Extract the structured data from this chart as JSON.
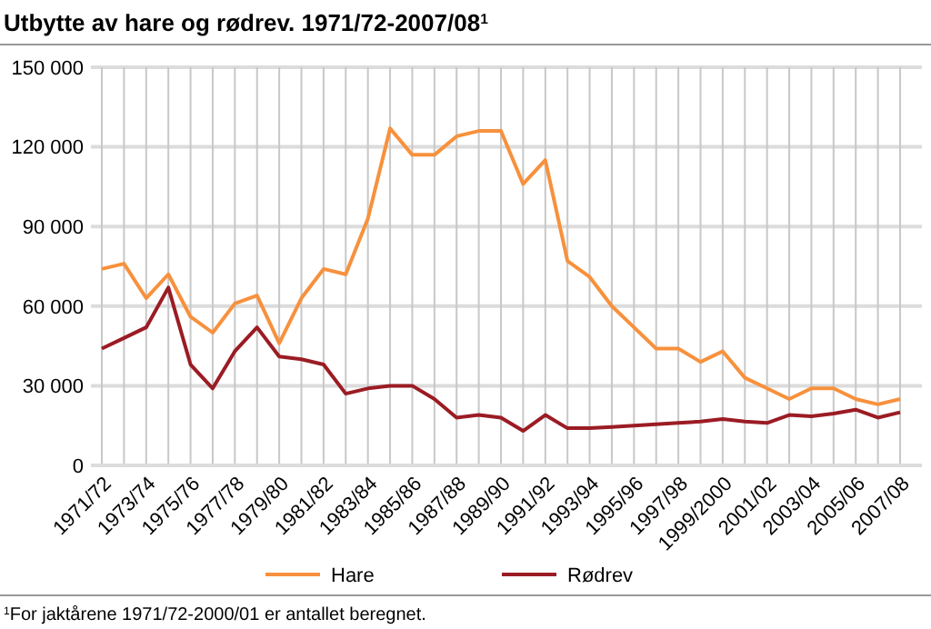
{
  "chart_data": {
    "type": "line",
    "title": "Utbytte av hare og rødrev. 1971/72-2007/08$^{1}$",
    "categories": [
      "1971/72",
      null,
      "1973/74",
      null,
      "1975/76",
      null,
      "1977/78",
      null,
      "1979/80",
      null,
      "1981/82",
      null,
      "1983/84",
      null,
      "1985/86",
      null,
      "1987/88",
      null,
      "1989/90",
      null,
      "1991/92",
      null,
      "1993/94",
      null,
      "1995/96",
      null,
      "1997/98",
      null,
      "1999/2000",
      null,
      "2001/02",
      null,
      "2003/04",
      null,
      "2005/06",
      null,
      "2007/08"
    ],
    "series": [
      {
        "name": "Hare",
        "color": "#f7913d",
        "values": [
          74000,
          76000,
          63000,
          72000,
          56000,
          50000,
          61000,
          64000,
          46000,
          63000,
          74000,
          72000,
          93000,
          127000,
          117000,
          117000,
          124000,
          126000,
          126000,
          106000,
          115000,
          77000,
          71000,
          60000,
          52000,
          44000,
          44000,
          39000,
          43000,
          33000,
          29000,
          25000,
          29000,
          29000,
          25000,
          23000,
          25000
        ]
      },
      {
        "name": "Rødrev",
        "color": "#9b1c24",
        "values": [
          44000,
          48000,
          52000,
          67000,
          38000,
          29000,
          43000,
          52000,
          41000,
          40000,
          38000,
          27000,
          29000,
          30000,
          30000,
          25000,
          18000,
          19000,
          18000,
          13000,
          19000,
          14000,
          14000,
          14500,
          15000,
          15500,
          16000,
          16500,
          17500,
          16500,
          16000,
          19000,
          18500,
          19500,
          21000,
          18000,
          20000
        ]
      }
    ],
    "ylim": [
      0,
      150000
    ],
    "yticks": [
      0,
      {
        "value": 30000,
        "label": "30 000"
      },
      {
        "value": 60000,
        "label": "60 000"
      },
      {
        "value": 90000,
        "label": "90 000"
      },
      {
        "value": 120000,
        "label": "120 000"
      },
      {
        "value": 150000,
        "label": "150 000"
      }
    ],
    "grid": true,
    "legend": "bottom",
    "annotations": [
      "$^{1}$For jaktårene 1971/72-2000/01 er antallet beregnet."
    ]
  }
}
